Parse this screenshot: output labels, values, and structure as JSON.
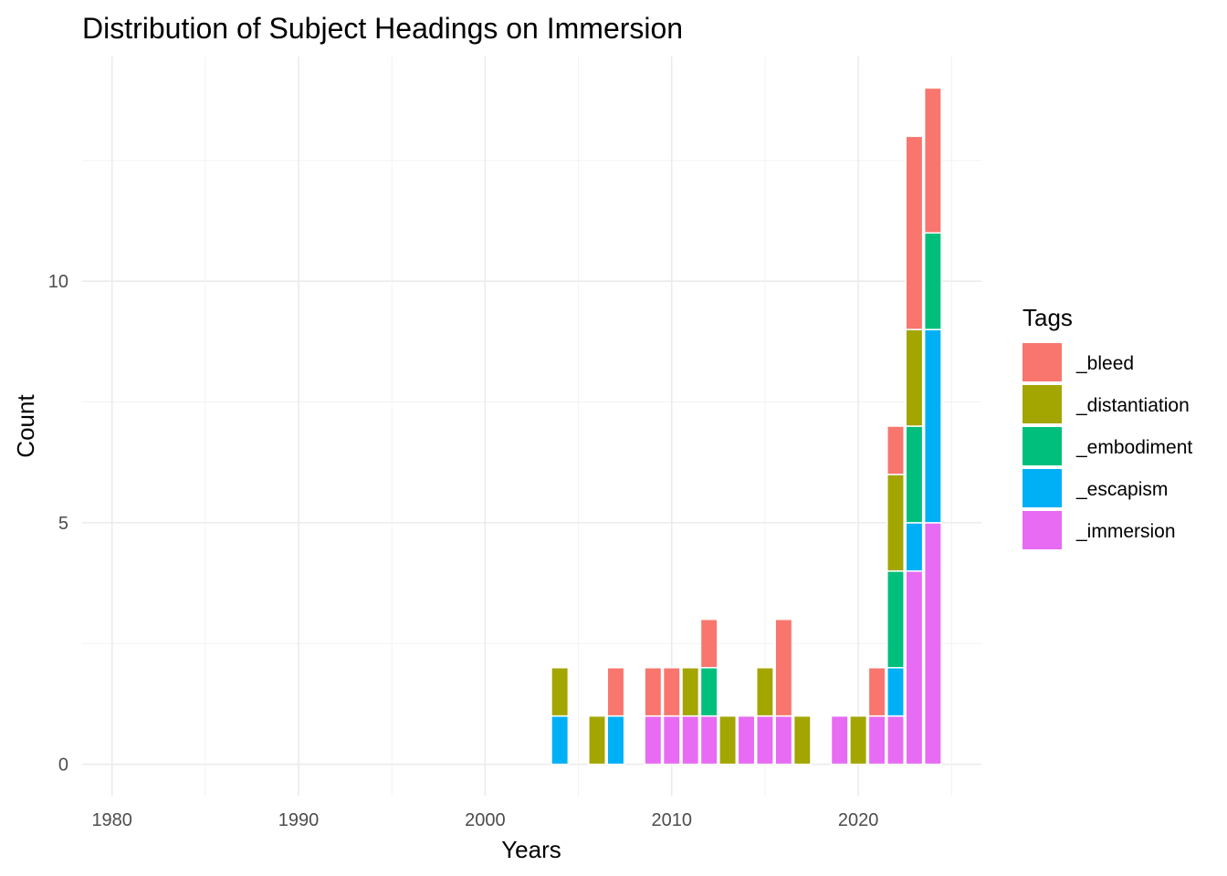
{
  "chart_data": {
    "type": "bar",
    "stacked": true,
    "title": "Distribution of Subject Headings on Immersion",
    "xlabel": "Years",
    "ylabel": "Count",
    "xlim": [
      1978.4,
      2026.6
    ],
    "ylim": [
      -0.65,
      14.65
    ],
    "x_ticks": [
      1980,
      1990,
      2000,
      2010,
      2020
    ],
    "y_ticks": [
      0,
      5,
      10
    ],
    "grid": true,
    "legend": {
      "title": "Tags",
      "position": "right"
    },
    "series": [
      {
        "name": "_immersion",
        "color": "#E76BF3",
        "points": [
          [
            2009,
            1
          ],
          [
            2010,
            1
          ],
          [
            2011,
            1
          ],
          [
            2012,
            1
          ],
          [
            2014,
            1
          ],
          [
            2015,
            1
          ],
          [
            2016,
            1
          ],
          [
            2019,
            1
          ],
          [
            2021,
            1
          ],
          [
            2022,
            1
          ],
          [
            2023,
            4
          ],
          [
            2024,
            5
          ]
        ]
      },
      {
        "name": "_escapism",
        "color": "#00B0F6",
        "points": [
          [
            2004,
            1
          ],
          [
            2007,
            1
          ],
          [
            2022,
            1
          ],
          [
            2023,
            1
          ],
          [
            2024,
            4
          ]
        ]
      },
      {
        "name": "_embodiment",
        "color": "#00BF7D",
        "points": [
          [
            2012,
            1
          ],
          [
            2022,
            2
          ],
          [
            2023,
            2
          ],
          [
            2024,
            2
          ]
        ]
      },
      {
        "name": "_distantiation",
        "color": "#A3A500",
        "points": [
          [
            2004,
            1
          ],
          [
            2006,
            1
          ],
          [
            2011,
            1
          ],
          [
            2013,
            1
          ],
          [
            2015,
            1
          ],
          [
            2017,
            1
          ],
          [
            2020,
            1
          ],
          [
            2022,
            2
          ],
          [
            2023,
            2
          ]
        ]
      },
      {
        "name": "_bleed",
        "color": "#F8766D",
        "points": [
          [
            2007,
            1
          ],
          [
            2009,
            1
          ],
          [
            2010,
            1
          ],
          [
            2012,
            1
          ],
          [
            2016,
            2
          ],
          [
            2021,
            1
          ],
          [
            2022,
            1
          ],
          [
            2023,
            4
          ],
          [
            2024,
            3
          ]
        ]
      }
    ],
    "legend_order": [
      "_bleed",
      "_distantiation",
      "_embodiment",
      "_escapism",
      "_immersion"
    ]
  }
}
